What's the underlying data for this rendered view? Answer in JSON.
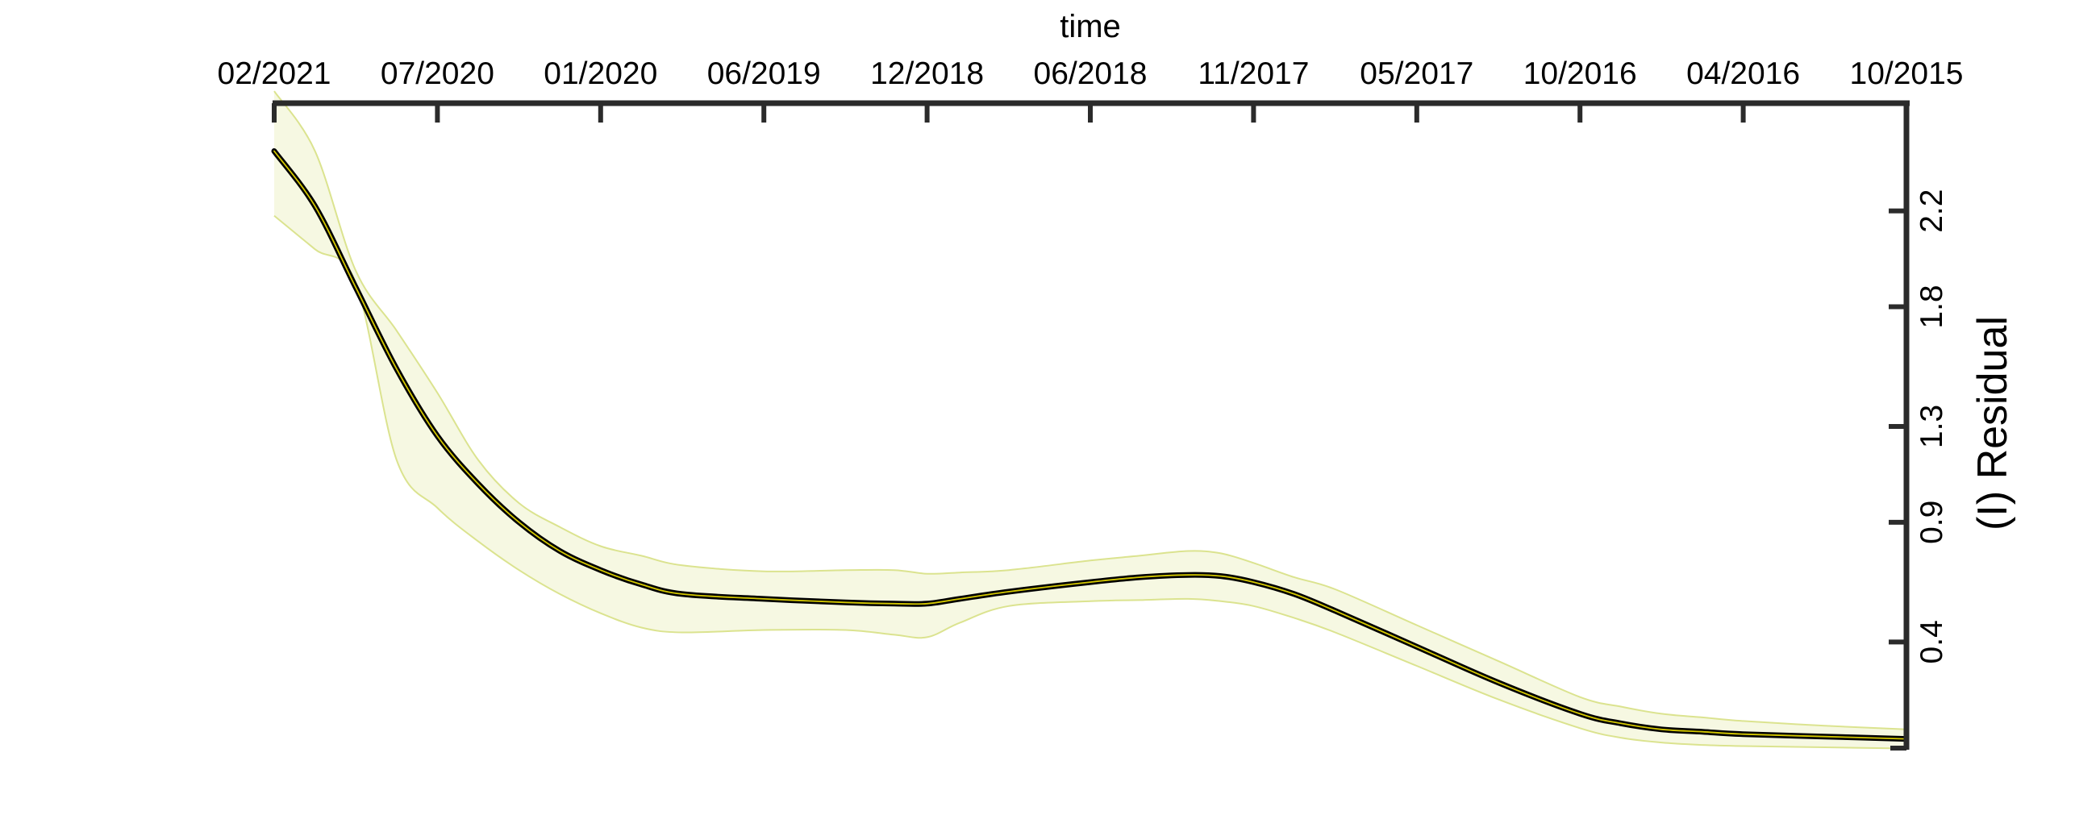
{
  "chart_data": {
    "type": "line",
    "title": "",
    "xlabel": "time",
    "ylabel": "(I) Residual",
    "x_axis": {
      "position": "top",
      "direction": "reversed",
      "tick_labels": [
        "02/2021",
        "07/2020",
        "01/2020",
        "06/2019",
        "12/2018",
        "06/2018",
        "11/2017",
        "05/2017",
        "10/2016",
        "04/2016",
        "10/2015"
      ]
    },
    "y_axis": {
      "position": "right",
      "tick_labels": [
        "2.2",
        "1.8",
        "1.3",
        "0.9",
        "0.4"
      ],
      "tick_values": [
        2.2,
        1.8,
        1.3,
        0.9,
        0.4
      ],
      "range": [
        -0.05,
        2.65
      ]
    },
    "x_range": [
      0,
      10
    ],
    "grid": false,
    "legend": "none",
    "colors": {
      "line": "#000000",
      "line_highlight": "#d4c800",
      "band_fill": "#f6f8e2",
      "band_edge": "#dbe38f",
      "axis": "#2b2b2b"
    },
    "series": [
      {
        "x": [
          0,
          0.25,
          0.5,
          0.75,
          1,
          1.25,
          1.5,
          1.75,
          2,
          2.25,
          2.5,
          3,
          3.5,
          3.8,
          4,
          4.2,
          4.5,
          5,
          5.3,
          5.6,
          5.8,
          6,
          6.25,
          6.5,
          7,
          7.5,
          8,
          8.25,
          8.5,
          8.75,
          9,
          9.5,
          10
        ],
        "y": [
          2.45,
          2.22,
          1.88,
          1.54,
          1.26,
          1.06,
          0.9,
          0.78,
          0.7,
          0.64,
          0.6,
          0.58,
          0.565,
          0.56,
          0.56,
          0.58,
          0.61,
          0.65,
          0.67,
          0.68,
          0.675,
          0.65,
          0.6,
          0.53,
          0.38,
          0.23,
          0.1,
          0.06,
          0.035,
          0.025,
          0.015,
          0.005,
          -0.005
        ],
        "lower": [
          2.18,
          2.04,
          1.9,
          1.16,
          0.96,
          0.82,
          0.7,
          0.6,
          0.52,
          0.46,
          0.44,
          0.45,
          0.45,
          0.43,
          0.42,
          0.48,
          0.55,
          0.57,
          0.575,
          0.58,
          0.57,
          0.55,
          0.5,
          0.44,
          0.3,
          0.16,
          0.04,
          0.0,
          -0.02,
          -0.03,
          -0.035,
          -0.04,
          -0.045
        ],
        "upper": [
          2.7,
          2.45,
          1.95,
          1.7,
          1.44,
          1.16,
          0.98,
          0.88,
          0.8,
          0.76,
          0.72,
          0.695,
          0.7,
          0.7,
          0.685,
          0.69,
          0.7,
          0.74,
          0.76,
          0.78,
          0.77,
          0.73,
          0.67,
          0.62,
          0.47,
          0.32,
          0.17,
          0.13,
          0.1,
          0.085,
          0.07,
          0.05,
          0.035
        ]
      }
    ]
  }
}
